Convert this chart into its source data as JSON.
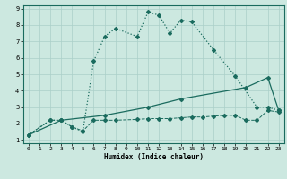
{
  "xlabel": "Humidex (Indice chaleur)",
  "xlim": [
    -0.5,
    23.5
  ],
  "ylim": [
    0.8,
    9.2
  ],
  "xticks": [
    0,
    1,
    2,
    3,
    4,
    5,
    6,
    7,
    8,
    9,
    10,
    11,
    12,
    13,
    14,
    15,
    16,
    17,
    18,
    19,
    20,
    21,
    22,
    23
  ],
  "yticks": [
    1,
    2,
    3,
    4,
    5,
    6,
    7,
    8,
    9
  ],
  "bg_color": "#cce8e0",
  "grid_color": "#aacfc8",
  "line_color": "#1a6b5e",
  "curve_x": [
    0,
    2,
    3,
    4,
    5,
    6,
    7,
    8,
    10,
    11,
    12,
    13,
    14,
    15,
    17,
    19,
    21,
    22,
    23
  ],
  "curve_y": [
    1.3,
    2.2,
    2.2,
    1.8,
    1.5,
    5.8,
    7.3,
    7.8,
    7.3,
    8.8,
    8.6,
    7.5,
    8.3,
    8.2,
    6.5,
    4.9,
    3.0,
    3.0,
    2.8
  ],
  "diag_x": [
    0,
    3,
    7,
    11,
    14,
    20,
    22,
    23
  ],
  "diag_y": [
    1.3,
    2.2,
    2.5,
    3.0,
    3.5,
    4.2,
    4.8,
    2.8
  ],
  "flat_x": [
    0,
    2,
    3,
    4,
    5,
    6,
    7,
    8,
    10,
    11,
    12,
    13,
    14,
    15,
    16,
    17,
    18,
    19,
    20,
    21,
    22,
    23
  ],
  "flat_y": [
    1.3,
    2.2,
    2.2,
    1.8,
    1.55,
    2.2,
    2.2,
    2.2,
    2.25,
    2.3,
    2.3,
    2.3,
    2.35,
    2.4,
    2.4,
    2.45,
    2.5,
    2.5,
    2.2,
    2.2,
    2.8,
    2.7
  ]
}
